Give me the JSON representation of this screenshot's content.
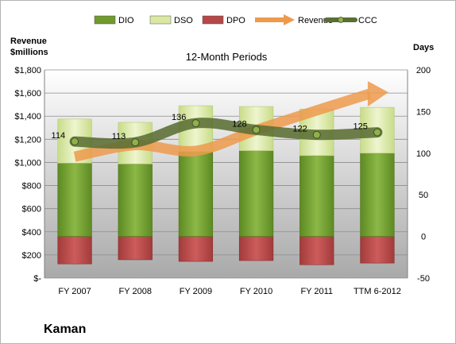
{
  "chart_data": {
    "type": "bar",
    "title": "12-Month Periods",
    "company": "Kaman",
    "left_axis_label": [
      "Revenue",
      "$millions"
    ],
    "right_axis_label": "Days",
    "categories": [
      "FY 2007",
      "FY 2008",
      "FY 2009",
      "FY 2010",
      "FY 2011",
      "TTM 6-2012"
    ],
    "left_axis": {
      "min": 0,
      "max": 1800,
      "step": 200,
      "tick_labels": [
        "$-",
        "$200",
        "$400",
        "$600",
        "$800",
        "$1,000",
        "$1,200",
        "$1,400",
        "$1,600",
        "$1,800"
      ]
    },
    "right_axis": {
      "min": -50,
      "max": 200,
      "step": 50,
      "tick_labels": [
        "-50",
        "0",
        "50",
        "100",
        "150",
        "200"
      ]
    },
    "legend": {
      "position": "top",
      "items": [
        {
          "name": "DIO",
          "kind": "bar",
          "color": "#6f9b2c"
        },
        {
          "name": "DSO",
          "kind": "bar",
          "color": "#dbe8a4"
        },
        {
          "name": "DPO",
          "kind": "bar",
          "color": "#b84747"
        },
        {
          "name": "Revenue",
          "kind": "arrow",
          "color": "#ed9a4c"
        },
        {
          "name": "CCC",
          "kind": "line",
          "color": "#5b6e34"
        }
      ]
    },
    "series": [
      {
        "name": "DIO",
        "axis": "right",
        "values": [
          88,
          87,
          102,
          103,
          97,
          100
        ]
      },
      {
        "name": "DSO",
        "axis": "right",
        "values": [
          53,
          50,
          55,
          53,
          56,
          55
        ]
      },
      {
        "name": "DPO",
        "axis": "right",
        "values": [
          -33,
          -28,
          -30,
          -29,
          -34,
          -32
        ]
      },
      {
        "name": "CCC",
        "axis": "right",
        "values": [
          114,
          113,
          136,
          128,
          122,
          125
        ],
        "data_labels": [
          "114",
          "113",
          "136",
          "128",
          "122",
          "125"
        ]
      },
      {
        "name": "Revenue",
        "axis": "left",
        "values": [
          1050,
          1150,
          1100,
          1280,
          1450,
          1600
        ]
      }
    ],
    "grid": true
  }
}
